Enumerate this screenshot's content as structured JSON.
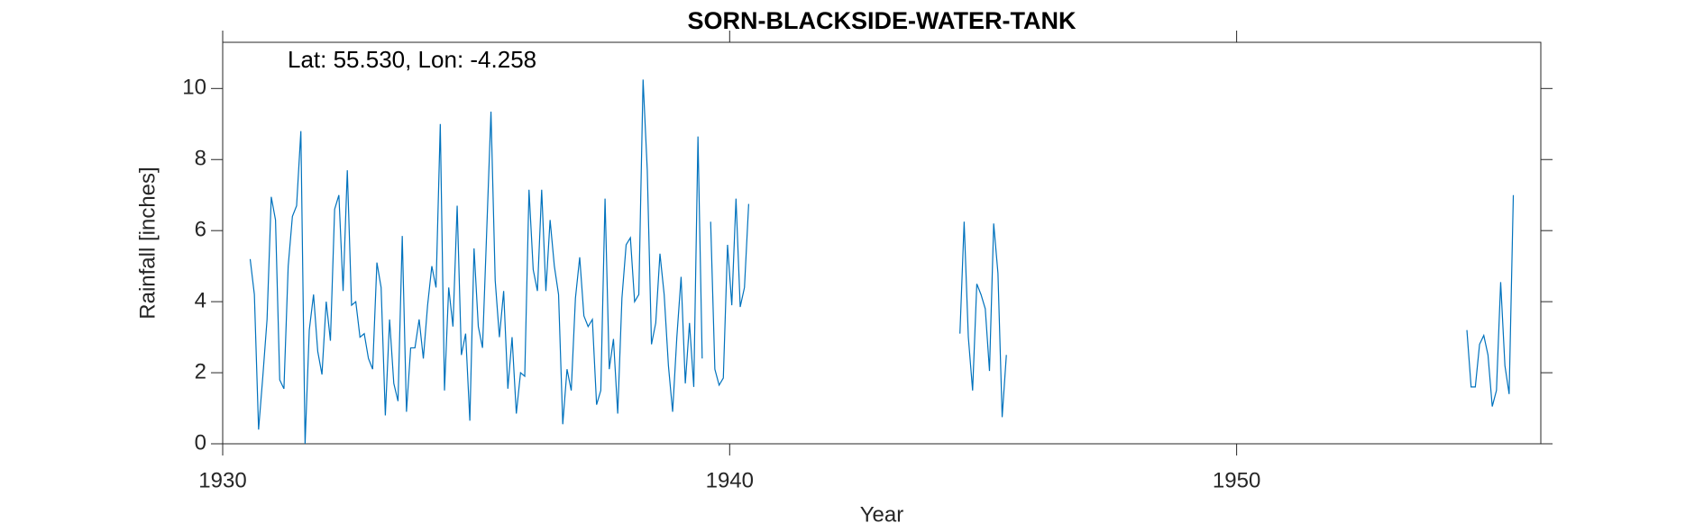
{
  "chart_data": {
    "type": "line",
    "title": "SORN-BLACKSIDE-WATER-TANK",
    "annotation": "Lat: 55.530, Lon: -4.258",
    "x_label": "Year",
    "y_label": "Rainfall [inches]",
    "xlim": [
      1930,
      1956
    ],
    "ylim": [
      0,
      11.3
    ],
    "xticks": [
      1930,
      1940,
      1950
    ],
    "yticks": [
      0,
      2,
      4,
      6,
      8,
      10
    ],
    "x": [
      1930.542,
      1930.625,
      1930.708,
      1930.792,
      1930.875,
      1930.958,
      1931.042,
      1931.125,
      1931.208,
      1931.292,
      1931.375,
      1931.458,
      1931.542,
      1931.625,
      1931.708,
      1931.792,
      1931.875,
      1931.958,
      1932.042,
      1932.125,
      1932.208,
      1932.292,
      1932.375,
      1932.458,
      1932.542,
      1932.625,
      1932.708,
      1932.792,
      1932.875,
      1932.958,
      1933.042,
      1933.125,
      1933.208,
      1933.292,
      1933.375,
      1933.458,
      1933.542,
      1933.625,
      1933.708,
      1933.792,
      1933.875,
      1933.958,
      1934.042,
      1934.125,
      1934.208,
      1934.292,
      1934.375,
      1934.458,
      1934.542,
      1934.625,
      1934.708,
      1934.792,
      1934.875,
      1934.958,
      1935.042,
      1935.125,
      1935.208,
      1935.292,
      1935.375,
      1935.458,
      1935.542,
      1935.625,
      1935.708,
      1935.792,
      1935.875,
      1935.958,
      1936.042,
      1936.125,
      1936.208,
      1936.292,
      1936.375,
      1936.458,
      1936.542,
      1936.625,
      1936.708,
      1936.792,
      1936.875,
      1936.958,
      1937.042,
      1937.125,
      1937.208,
      1937.292,
      1937.375,
      1937.458,
      1937.542,
      1937.625,
      1937.708,
      1937.792,
      1937.875,
      1937.958,
      1938.042,
      1938.125,
      1938.208,
      1938.292,
      1938.375,
      1938.458,
      1938.542,
      1938.625,
      1938.708,
      1938.792,
      1938.875,
      1938.958,
      1939.042,
      1939.125,
      1939.208,
      1939.292,
      1939.375,
      1939.458,
      1939.542,
      1939.625,
      1939.708,
      1939.792,
      1939.875,
      1939.958,
      1940.042,
      1940.125,
      1940.208,
      1940.292,
      1940.375,
      1940.458,
      1944.542,
      1944.625,
      1944.708,
      1944.792,
      1944.875,
      1944.958,
      1945.042,
      1945.125,
      1945.208,
      1945.292,
      1945.375,
      1945.458,
      1945.542,
      1954.542,
      1954.625,
      1954.708,
      1954.792,
      1954.875,
      1954.958,
      1955.042,
      1955.125,
      1955.208,
      1955.292,
      1955.375,
      1955.458
    ],
    "series": [
      {
        "color": "#0072bd",
        "values": [
          5.2,
          4.2,
          0.4,
          1.9,
          3.5,
          6.95,
          6.3,
          1.8,
          1.55,
          5.0,
          6.4,
          6.7,
          8.8,
          0.0,
          3.2,
          4.2,
          2.6,
          1.95,
          4.0,
          2.9,
          6.6,
          7.0,
          4.3,
          7.7,
          3.9,
          4.0,
          3.0,
          3.1,
          2.4,
          2.1,
          5.1,
          4.4,
          0.8,
          3.5,
          1.7,
          1.2,
          5.85,
          0.9,
          2.7,
          2.7,
          3.5,
          2.4,
          3.9,
          5.0,
          4.4,
          9.0,
          1.5,
          4.4,
          3.3,
          6.7,
          2.5,
          3.1,
          0.65,
          5.5,
          3.3,
          2.7,
          6.0,
          9.35,
          4.6,
          3.0,
          4.3,
          1.55,
          3.0,
          0.85,
          2.0,
          1.9,
          7.15,
          4.9,
          4.3,
          7.15,
          4.3,
          6.3,
          5.0,
          4.2,
          0.55,
          2.1,
          1.5,
          4.1,
          5.25,
          3.6,
          3.3,
          3.5,
          1.1,
          1.5,
          6.9,
          2.1,
          2.95,
          0.85,
          4.1,
          5.6,
          5.8,
          4.0,
          4.2,
          10.25,
          7.7,
          2.8,
          3.4,
          5.35,
          4.2,
          2.2,
          0.9,
          3.0,
          4.7,
          1.7,
          3.4,
          1.6,
          8.65,
          2.4,
          null,
          6.25,
          2.1,
          1.65,
          1.85,
          5.6,
          3.9,
          6.9,
          3.85,
          4.4,
          6.75,
          null,
          3.1,
          6.25,
          3.0,
          1.5,
          4.5,
          4.2,
          3.8,
          2.05,
          6.2,
          4.8,
          0.75,
          2.5,
          null,
          3.2,
          1.6,
          1.6,
          2.8,
          3.05,
          2.5,
          1.05,
          1.5,
          4.55,
          2.2,
          1.4,
          7.0
        ]
      }
    ]
  }
}
